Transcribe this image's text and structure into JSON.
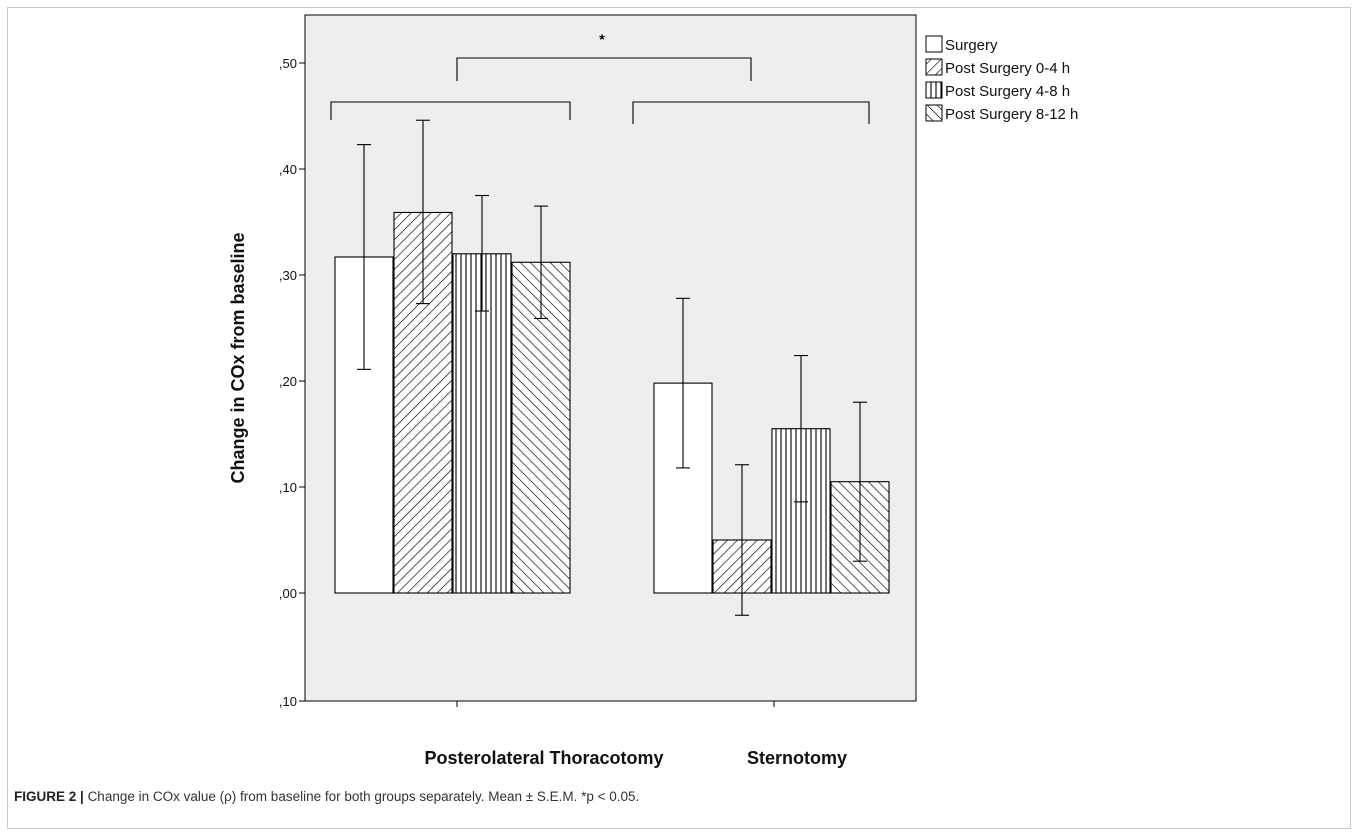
{
  "chart_data": {
    "type": "bar",
    "title": "",
    "xlabel": "",
    "ylabel": "Change in COx from baseline",
    "ylim": [
      -0.1,
      0.53
    ],
    "y_ticks": [
      {
        "value": 0.5,
        "label": ",50"
      },
      {
        "value": 0.4,
        "label": ",40"
      },
      {
        "value": 0.3,
        "label": ",30"
      },
      {
        "value": 0.2,
        "label": ",20"
      },
      {
        "value": 0.1,
        "label": ",10"
      },
      {
        "value": 0.0,
        "label": ",00"
      },
      {
        "value": -0.1,
        "label": ",10"
      }
    ],
    "categories": [
      "Posterolateral Thoracotomy",
      "Sternotomy"
    ],
    "series": [
      {
        "name": "Surgery",
        "pattern": "none",
        "values": [
          0.317,
          0.198
        ],
        "err_low": [
          0.211,
          0.118
        ],
        "err_high": [
          0.423,
          0.278
        ]
      },
      {
        "name": "Post Surgery 0-4 h",
        "pattern": "diagonal-down",
        "values": [
          0.359,
          0.05
        ],
        "err_low": [
          0.273,
          -0.021
        ],
        "err_high": [
          0.446,
          0.121
        ]
      },
      {
        "name": "Post Surgery 4-8 h",
        "pattern": "vertical",
        "values": [
          0.32,
          0.155
        ],
        "err_low": [
          0.266,
          0.086
        ],
        "err_high": [
          0.375,
          0.224
        ]
      },
      {
        "name": "Post Surgery 8-12 h",
        "pattern": "diagonal-up",
        "values": [
          0.312,
          0.105
        ],
        "err_low": [
          0.259,
          0.03
        ],
        "err_high": [
          0.365,
          0.18
        ]
      }
    ],
    "significance_marker": "*",
    "legend_position": "top-right outside plot",
    "colors": {
      "plot_background": "#eeeeee",
      "bar_fill": "#ffffff",
      "stroke": "#000000"
    }
  },
  "caption": {
    "label": "FIGURE 2 |",
    "text": "Change in COx value (ρ) from baseline for both groups separately. Mean ± S.E.M. *p < 0.05."
  }
}
